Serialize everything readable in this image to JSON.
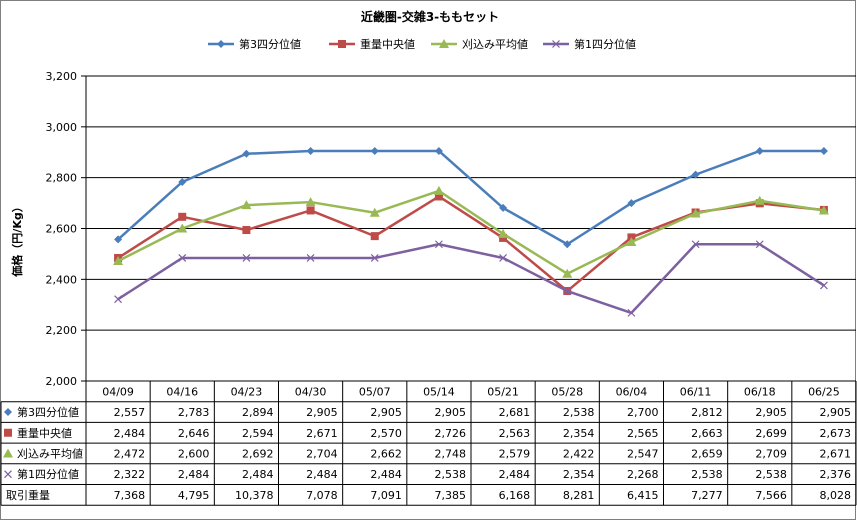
{
  "chart_data": {
    "type": "line",
    "title": "近畿圏-交雑3-ももセット",
    "ylabel": "価格（円/Kg）",
    "ylim": [
      2000,
      3200
    ],
    "y_ticks": [
      "2,000",
      "2,200",
      "2,400",
      "2,600",
      "2,800",
      "3,000",
      "3,200"
    ],
    "y_tick_values": [
      2000,
      2200,
      2400,
      2600,
      2800,
      3000,
      3200
    ],
    "grid": true,
    "legend_position": "top",
    "categories": [
      "04/09",
      "04/16",
      "04/23",
      "04/30",
      "05/07",
      "05/14",
      "05/21",
      "05/28",
      "06/04",
      "06/11",
      "06/18",
      "06/25"
    ],
    "series": [
      {
        "name": "第3四分位値",
        "color": "#4a7ebb",
        "marker": "diamond",
        "values": [
          2557,
          2783,
          2894,
          2905,
          2905,
          2905,
          2681,
          2538,
          2700,
          2812,
          2905,
          2905
        ],
        "labels": [
          "2,557",
          "2,783",
          "2,894",
          "2,905",
          "2,905",
          "2,905",
          "2,681",
          "2,538",
          "2,700",
          "2,812",
          "2,905",
          "2,905"
        ]
      },
      {
        "name": "重量中央値",
        "color": "#be4b48",
        "marker": "square",
        "values": [
          2484,
          2646,
          2594,
          2671,
          2570,
          2726,
          2563,
          2354,
          2565,
          2663,
          2699,
          2673
        ],
        "labels": [
          "2,484",
          "2,646",
          "2,594",
          "2,671",
          "2,570",
          "2,726",
          "2,563",
          "2,354",
          "2,565",
          "2,663",
          "2,699",
          "2,673"
        ]
      },
      {
        "name": "刈込み平均値",
        "color": "#98b954",
        "marker": "triangle",
        "values": [
          2472,
          2600,
          2692,
          2704,
          2662,
          2748,
          2579,
          2422,
          2547,
          2659,
          2709,
          2671
        ],
        "labels": [
          "2,472",
          "2,600",
          "2,692",
          "2,704",
          "2,662",
          "2,748",
          "2,579",
          "2,422",
          "2,547",
          "2,659",
          "2,709",
          "2,671"
        ]
      },
      {
        "name": "第1四分位値",
        "color": "#7d60a0",
        "marker": "x",
        "values": [
          2322,
          2484,
          2484,
          2484,
          2484,
          2538,
          2484,
          2354,
          2268,
          2538,
          2538,
          2376
        ],
        "labels": [
          "2,322",
          "2,484",
          "2,484",
          "2,484",
          "2,484",
          "2,538",
          "2,484",
          "2,354",
          "2,268",
          "2,538",
          "2,538",
          "2,376"
        ]
      }
    ],
    "table_extra_rows": [
      {
        "name": "取引重量",
        "labels": [
          "7,368",
          "4,795",
          "10,378",
          "7,078",
          "7,091",
          "7,385",
          "6,168",
          "8,281",
          "6,415",
          "7,277",
          "7,566",
          "8,028"
        ]
      }
    ]
  }
}
